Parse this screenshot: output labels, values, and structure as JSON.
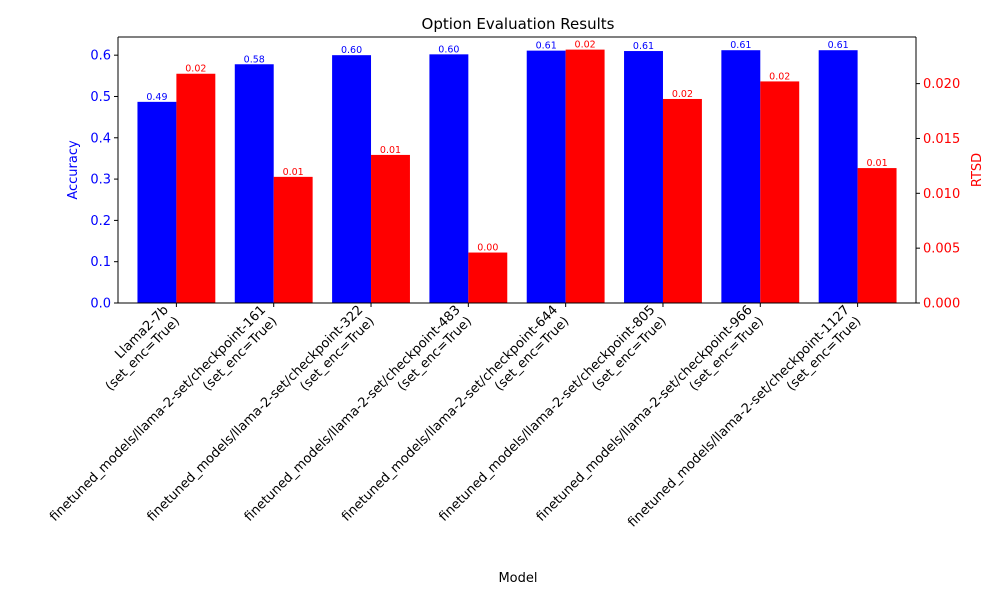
{
  "chart_data": {
    "type": "bar",
    "title": "Option Evaluation Results",
    "xlabel": "Model",
    "ylabel_left": "Accuracy",
    "ylabel_right": "RTSD",
    "categories": [
      [
        "Llama2-7b",
        "(set_enc=True)"
      ],
      [
        "finetuned_models/llama-2-set/checkpoint-161",
        "(set_enc=True)"
      ],
      [
        "finetuned_models/llama-2-set/checkpoint-322",
        "(set_enc=True)"
      ],
      [
        "finetuned_models/llama-2-set/checkpoint-483",
        "(set_enc=True)"
      ],
      [
        "finetuned_models/llama-2-set/checkpoint-644",
        "(set_enc=True)"
      ],
      [
        "finetuned_models/llama-2-set/checkpoint-805",
        "(set_enc=True)"
      ],
      [
        "finetuned_models/llama-2-set/checkpoint-966",
        "(set_enc=True)"
      ],
      [
        "finetuned_models/llama-2-set/checkpoint-1127",
        "(set_enc=True)"
      ]
    ],
    "series": [
      {
        "name": "Accuracy",
        "axis": "left",
        "color": "#0000ff",
        "values": [
          0.487,
          0.578,
          0.6,
          0.602,
          0.611,
          0.61,
          0.612,
          0.612
        ],
        "labels": [
          "0.49",
          "0.58",
          "0.60",
          "0.60",
          "0.61",
          "0.61",
          "0.61",
          "0.61"
        ]
      },
      {
        "name": "RTSD",
        "axis": "right",
        "color": "#ff0000",
        "values": [
          0.0209,
          0.0115,
          0.0135,
          0.0046,
          0.0231,
          0.0186,
          0.0202,
          0.0123
        ],
        "labels": [
          "0.02",
          "0.01",
          "0.01",
          "0.00",
          "0.02",
          "0.02",
          "0.02",
          "0.01"
        ]
      }
    ],
    "ylim_left": [
      0,
      0.644
    ],
    "yticks_left": [
      "0.0",
      "0.1",
      "0.2",
      "0.3",
      "0.4",
      "0.5",
      "0.6"
    ],
    "ylim_right": [
      0,
      0.02425
    ],
    "yticks_right": [
      "0.000",
      "0.005",
      "0.010",
      "0.015",
      "0.020"
    ],
    "grid": false,
    "legend": "none"
  }
}
